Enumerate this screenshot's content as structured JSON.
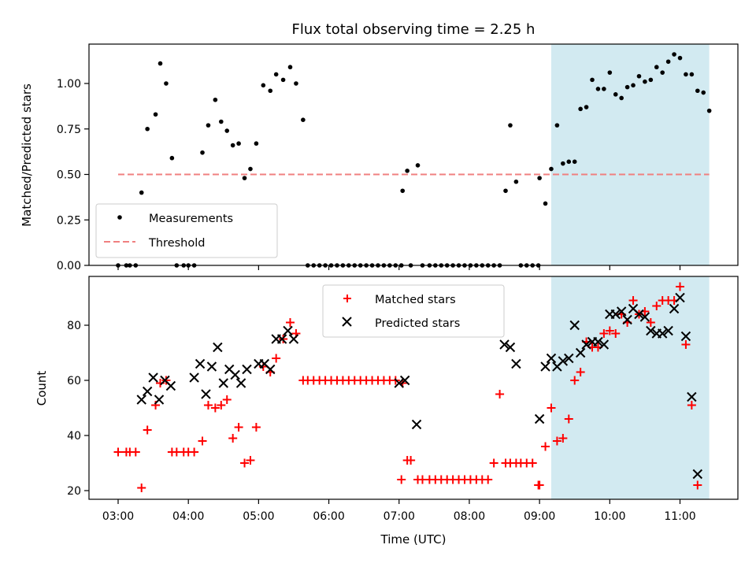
{
  "chart_data": [
    {
      "type": "scatter",
      "title": "Flux total observing time = 2.25 h",
      "xlabel": "",
      "ylabel": "Matched/Predicted stars",
      "ylim": [
        0,
        1.22
      ],
      "yticks": [
        "0.00",
        "0.25",
        "0.50",
        "0.75",
        "1.00"
      ],
      "shaded_region": {
        "from": "09:10",
        "to": "11:25",
        "color": "#add8e6"
      },
      "threshold": {
        "name": "Threshold",
        "value": 0.5,
        "from": "03:00",
        "to": "11:25",
        "color": "#f08080"
      },
      "legend": {
        "position": "lower-left",
        "entries": [
          "Measurements",
          "Threshold"
        ]
      },
      "series": [
        {
          "name": "Measurements",
          "color": "#000000",
          "marker": "dot",
          "points": [
            [
              "03:00",
              0
            ],
            [
              "03:07",
              0
            ],
            [
              "03:10",
              0
            ],
            [
              "03:15",
              0
            ],
            [
              "03:20",
              0.4
            ],
            [
              "03:25",
              0.75
            ],
            [
              "03:32",
              0.83
            ],
            [
              "03:36",
              1.11
            ],
            [
              "03:41",
              1.0
            ],
            [
              "03:46",
              0.59
            ],
            [
              "03:50",
              0
            ],
            [
              "03:56",
              0
            ],
            [
              "04:00",
              0
            ],
            [
              "04:05",
              0
            ],
            [
              "04:12",
              0.62
            ],
            [
              "04:17",
              0.77
            ],
            [
              "04:23",
              0.91
            ],
            [
              "04:28",
              0.79
            ],
            [
              "04:33",
              0.74
            ],
            [
              "04:38",
              0.66
            ],
            [
              "04:43",
              0.67
            ],
            [
              "04:48",
              0.48
            ],
            [
              "04:53",
              0.53
            ],
            [
              "04:58",
              0.67
            ],
            [
              "05:04",
              0.99
            ],
            [
              "05:10",
              0.96
            ],
            [
              "05:15",
              1.05
            ],
            [
              "05:21",
              1.02
            ],
            [
              "05:27",
              1.09
            ],
            [
              "05:32",
              1.0
            ],
            [
              "05:38",
              0.8
            ],
            [
              "05:42",
              0
            ],
            [
              "05:47",
              0
            ],
            [
              "05:52",
              0
            ],
            [
              "05:57",
              0
            ],
            [
              "06:02",
              0
            ],
            [
              "06:07",
              0
            ],
            [
              "06:12",
              0
            ],
            [
              "06:17",
              0
            ],
            [
              "06:22",
              0
            ],
            [
              "06:27",
              0
            ],
            [
              "06:32",
              0
            ],
            [
              "06:37",
              0
            ],
            [
              "06:42",
              0
            ],
            [
              "06:47",
              0
            ],
            [
              "06:52",
              0
            ],
            [
              "06:57",
              0
            ],
            [
              "07:02",
              0
            ],
            [
              "07:03",
              0.41
            ],
            [
              "07:07",
              0.52
            ],
            [
              "07:10",
              0
            ],
            [
              "07:16",
              0.55
            ],
            [
              "07:20",
              0
            ],
            [
              "07:26",
              0
            ],
            [
              "07:31",
              0
            ],
            [
              "07:36",
              0
            ],
            [
              "07:41",
              0
            ],
            [
              "07:46",
              0
            ],
            [
              "07:51",
              0
            ],
            [
              "07:56",
              0
            ],
            [
              "08:01",
              0
            ],
            [
              "08:06",
              0
            ],
            [
              "08:11",
              0
            ],
            [
              "08:16",
              0
            ],
            [
              "08:21",
              0
            ],
            [
              "08:26",
              0
            ],
            [
              "08:31",
              0.41
            ],
            [
              "08:35",
              0.77
            ],
            [
              "08:40",
              0.46
            ],
            [
              "08:44",
              0
            ],
            [
              "08:49",
              0
            ],
            [
              "08:54",
              0
            ],
            [
              "08:59",
              0
            ],
            [
              "09:00",
              0.48
            ],
            [
              "09:05",
              0.34
            ],
            [
              "09:10",
              0.53
            ],
            [
              "09:15",
              0.77
            ],
            [
              "09:20",
              0.56
            ],
            [
              "09:25",
              0.57
            ],
            [
              "09:30",
              0.57
            ],
            [
              "09:35",
              0.86
            ],
            [
              "09:40",
              0.87
            ],
            [
              "09:45",
              1.02
            ],
            [
              "09:50",
              0.97
            ],
            [
              "09:55",
              0.97
            ],
            [
              "10:00",
              1.06
            ],
            [
              "10:05",
              0.94
            ],
            [
              "10:10",
              0.92
            ],
            [
              "10:15",
              0.98
            ],
            [
              "10:20",
              0.99
            ],
            [
              "10:25",
              1.04
            ],
            [
              "10:30",
              1.01
            ],
            [
              "10:35",
              1.02
            ],
            [
              "10:40",
              1.09
            ],
            [
              "10:45",
              1.06
            ],
            [
              "10:50",
              1.12
            ],
            [
              "10:55",
              1.16
            ],
            [
              "11:00",
              1.14
            ],
            [
              "11:05",
              1.05
            ],
            [
              "11:10",
              1.05
            ],
            [
              "11:15",
              0.96
            ],
            [
              "11:20",
              0.95
            ],
            [
              "11:25",
              0.85
            ]
          ]
        }
      ]
    },
    {
      "type": "scatter",
      "title": "",
      "xlabel": "Time (UTC)",
      "ylabel": "Count",
      "ylim": [
        17,
        96
      ],
      "yticks": [
        "20",
        "40",
        "60",
        "80"
      ],
      "xticks": [
        "03:00",
        "04:00",
        "05:00",
        "06:00",
        "07:00",
        "08:00",
        "09:00",
        "10:00",
        "11:00"
      ],
      "shaded_region": {
        "from": "09:10",
        "to": "11:25",
        "color": "#add8e6"
      },
      "legend": {
        "position": "top-center",
        "entries": [
          "Matched stars",
          "Predicted stars"
        ]
      },
      "series": [
        {
          "name": "Matched stars",
          "color": "#ff0000",
          "marker": "plus",
          "points": [
            [
              "03:00",
              34
            ],
            [
              "03:07",
              34
            ],
            [
              "03:10",
              34
            ],
            [
              "03:15",
              34
            ],
            [
              "03:20",
              21
            ],
            [
              "03:25",
              42
            ],
            [
              "03:32",
              51
            ],
            [
              "03:36",
              59
            ],
            [
              "03:41",
              60
            ],
            [
              "03:46",
              34
            ],
            [
              "03:50",
              34
            ],
            [
              "03:56",
              34
            ],
            [
              "04:00",
              34
            ],
            [
              "04:05",
              34
            ],
            [
              "04:12",
              38
            ],
            [
              "04:17",
              51
            ],
            [
              "04:23",
              50
            ],
            [
              "04:28",
              51
            ],
            [
              "04:33",
              53
            ],
            [
              "04:38",
              39
            ],
            [
              "04:43",
              43
            ],
            [
              "04:48",
              30
            ],
            [
              "04:53",
              31
            ],
            [
              "04:58",
              43
            ],
            [
              "05:04",
              65
            ],
            [
              "05:10",
              63
            ],
            [
              "05:15",
              68
            ],
            [
              "05:21",
              75
            ],
            [
              "05:27",
              81
            ],
            [
              "05:32",
              77
            ],
            [
              "05:38",
              60
            ],
            [
              "05:42",
              60
            ],
            [
              "05:47",
              60
            ],
            [
              "05:52",
              60
            ],
            [
              "05:57",
              60
            ],
            [
              "06:02",
              60
            ],
            [
              "06:07",
              60
            ],
            [
              "06:12",
              60
            ],
            [
              "06:17",
              60
            ],
            [
              "06:22",
              60
            ],
            [
              "06:27",
              60
            ],
            [
              "06:32",
              60
            ],
            [
              "06:37",
              60
            ],
            [
              "06:42",
              60
            ],
            [
              "06:47",
              60
            ],
            [
              "06:52",
              60
            ],
            [
              "06:57",
              60
            ],
            [
              "07:02",
              24
            ],
            [
              "07:03",
              59
            ],
            [
              "07:07",
              31
            ],
            [
              "07:10",
              31
            ],
            [
              "07:16",
              24
            ],
            [
              "07:20",
              24
            ],
            [
              "07:26",
              24
            ],
            [
              "07:31",
              24
            ],
            [
              "07:36",
              24
            ],
            [
              "07:41",
              24
            ],
            [
              "07:46",
              24
            ],
            [
              "07:51",
              24
            ],
            [
              "07:56",
              24
            ],
            [
              "08:01",
              24
            ],
            [
              "08:06",
              24
            ],
            [
              "08:11",
              24
            ],
            [
              "08:16",
              24
            ],
            [
              "08:21",
              30
            ],
            [
              "08:26",
              55
            ],
            [
              "08:31",
              30
            ],
            [
              "08:35",
              30
            ],
            [
              "08:40",
              30
            ],
            [
              "08:44",
              30
            ],
            [
              "08:49",
              30
            ],
            [
              "08:54",
              30
            ],
            [
              "08:59",
              22
            ],
            [
              "09:00",
              22
            ],
            [
              "09:05",
              36
            ],
            [
              "09:10",
              50
            ],
            [
              "09:15",
              38
            ],
            [
              "09:20",
              39
            ],
            [
              "09:25",
              46
            ],
            [
              "09:30",
              60
            ],
            [
              "09:35",
              63
            ],
            [
              "09:40",
              74
            ],
            [
              "09:45",
              72
            ],
            [
              "09:50",
              72
            ],
            [
              "09:55",
              77
            ],
            [
              "10:00",
              78
            ],
            [
              "10:05",
              77
            ],
            [
              "10:10",
              84
            ],
            [
              "10:15",
              81
            ],
            [
              "10:20",
              89
            ],
            [
              "10:25",
              84
            ],
            [
              "10:30",
              85
            ],
            [
              "10:35",
              81
            ],
            [
              "10:40",
              87
            ],
            [
              "10:45",
              89
            ],
            [
              "10:50",
              89
            ],
            [
              "10:55",
              89
            ],
            [
              "11:00",
              94
            ],
            [
              "11:05",
              73
            ],
            [
              "11:10",
              51
            ],
            [
              "11:15",
              22
            ]
          ]
        },
        {
          "name": "Predicted stars",
          "color": "#000000",
          "marker": "x",
          "points": [
            [
              "03:20",
              53
            ],
            [
              "03:25",
              56
            ],
            [
              "03:30",
              61
            ],
            [
              "03:35",
              53
            ],
            [
              "03:40",
              60
            ],
            [
              "03:45",
              58
            ],
            [
              "04:05",
              61
            ],
            [
              "04:10",
              66
            ],
            [
              "04:15",
              55
            ],
            [
              "04:20",
              65
            ],
            [
              "04:25",
              72
            ],
            [
              "04:30",
              59
            ],
            [
              "04:35",
              64
            ],
            [
              "04:40",
              62
            ],
            [
              "04:45",
              59
            ],
            [
              "04:50",
              64
            ],
            [
              "05:00",
              66
            ],
            [
              "05:05",
              66
            ],
            [
              "05:10",
              64
            ],
            [
              "05:15",
              75
            ],
            [
              "05:20",
              75
            ],
            [
              "05:25",
              78
            ],
            [
              "05:30",
              75
            ],
            [
              "07:00",
              59
            ],
            [
              "07:05",
              60
            ],
            [
              "07:15",
              44
            ],
            [
              "08:30",
              73
            ],
            [
              "08:35",
              72
            ],
            [
              "08:40",
              66
            ],
            [
              "09:00",
              46
            ],
            [
              "09:05",
              65
            ],
            [
              "09:10",
              68
            ],
            [
              "09:15",
              65
            ],
            [
              "09:20",
              67
            ],
            [
              "09:25",
              68
            ],
            [
              "09:30",
              80
            ],
            [
              "09:35",
              70
            ],
            [
              "09:40",
              73
            ],
            [
              "09:45",
              74
            ],
            [
              "09:50",
              74
            ],
            [
              "09:55",
              73
            ],
            [
              "10:00",
              84
            ],
            [
              "10:05",
              84
            ],
            [
              "10:10",
              85
            ],
            [
              "10:15",
              82
            ],
            [
              "10:20",
              86
            ],
            [
              "10:25",
              84
            ],
            [
              "10:30",
              83
            ],
            [
              "10:35",
              78
            ],
            [
              "10:40",
              77
            ],
            [
              "10:45",
              77
            ],
            [
              "10:50",
              78
            ],
            [
              "10:55",
              86
            ],
            [
              "11:00",
              90
            ],
            [
              "11:05",
              76
            ],
            [
              "11:10",
              54
            ],
            [
              "11:15",
              26
            ]
          ]
        }
      ]
    }
  ]
}
